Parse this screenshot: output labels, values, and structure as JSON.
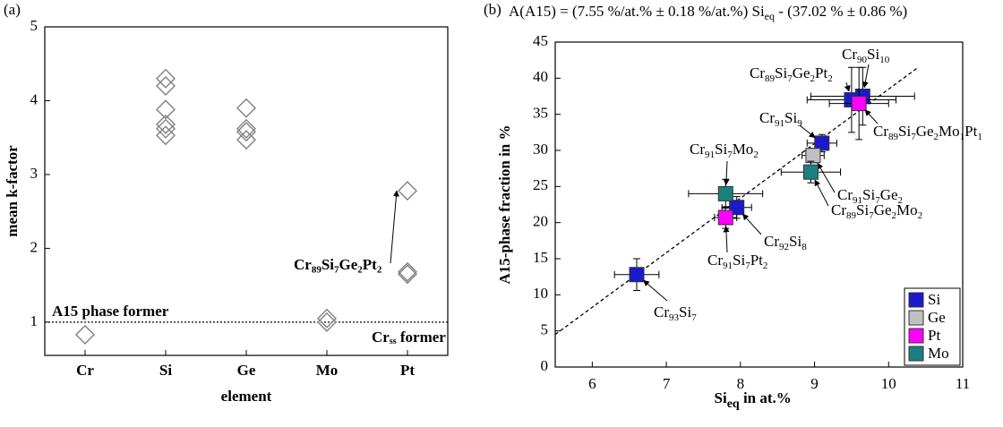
{
  "chart_data": [
    {
      "type": "scatter",
      "panel_label": "(a)",
      "x_label": "element",
      "y_label": "mean k-factor",
      "categories": [
        "Cr",
        "Si",
        "Ge",
        "Mo",
        "Pt"
      ],
      "values": [
        [
          0.83
        ],
        [
          4.3,
          4.2,
          3.88,
          3.68,
          3.62,
          3.53
        ],
        [
          3.9,
          3.62,
          3.58,
          3.47
        ],
        [
          1.05,
          1.0
        ],
        [
          2.78,
          1.68,
          1.65
        ]
      ],
      "marker_color": "#808080",
      "ylim": [
        0.55,
        5
      ],
      "yticks": [
        1,
        2,
        3,
        4,
        5
      ],
      "hline": 1,
      "annotations": [
        [
          "A15 phase former"
        ],
        [
          "Cr",
          "ss",
          " former"
        ],
        [
          "Cr",
          "89",
          "Si",
          "7",
          "Ge",
          "2",
          "Pt",
          "2"
        ]
      ]
    },
    {
      "type": "errorbar",
      "panel_label": "(b)",
      "title": [
        "A(A15) = (7.55 %/at.% ± 0.18 %/at.%) Si",
        "eq",
        " - (37.02 % ± 0.86 %)"
      ],
      "x_label": [
        "Si",
        "eq",
        " in at.%"
      ],
      "y_label": "A15-phase fraction in %",
      "xlim": [
        5.5,
        11
      ],
      "xticks": [
        6,
        7,
        8,
        9,
        10,
        11
      ],
      "ylim": [
        0,
        45
      ],
      "yticks": [
        0,
        5,
        10,
        15,
        20,
        25,
        30,
        35,
        40,
        45
      ],
      "fit": {
        "slope": 7.55,
        "intercept": -37.02
      },
      "legend": "lower right",
      "series": [
        {
          "name": "Si",
          "color": "#1a1acc",
          "x": [
            6.6,
            7.95,
            9.1,
            9.65,
            9.5
          ],
          "values": [
            12.8,
            22.1,
            31,
            37.5,
            37
          ],
          "xerr": [
            0.3,
            0.2,
            0.2,
            0.7,
            0.6
          ],
          "yerr": [
            2.2,
            1.5,
            1.2,
            4,
            4.5
          ],
          "labels": [
            [
              "Cr",
              "93",
              "Si",
              "7"
            ],
            [
              "Cr",
              "92",
              "Si",
              "8"
            ],
            [
              "Cr",
              "91",
              "Si",
              "9"
            ],
            [
              "Cr",
              "90",
              "Si",
              "10"
            ],
            [
              "Cr",
              "89",
              "Si",
              "7",
              "Ge",
              "2",
              "Pt",
              "2"
            ]
          ]
        },
        {
          "name": "Ge",
          "color": "#c0c0c0",
          "x": [
            8.98
          ],
          "values": [
            29.3
          ],
          "xerr": [
            0.15
          ],
          "yerr": [
            1
          ],
          "labels": [
            [
              "Cr",
              "91",
              "Si",
              "7",
              "Ge",
              "2"
            ]
          ]
        },
        {
          "name": "Pt",
          "color": "#ff00ff",
          "x": [
            7.8,
            9.6
          ],
          "values": [
            20.7,
            36.5
          ],
          "xerr": [
            0.15,
            0.4
          ],
          "yerr": [
            1.5,
            5
          ],
          "labels": [
            [
              "Cr",
              "91",
              "Si",
              "7",
              "Pt",
              "2"
            ],
            [
              "Cr",
              "89",
              "Si",
              "7",
              "Ge",
              "2",
              "Mo",
              "1",
              "Pt",
              "1"
            ]
          ]
        },
        {
          "name": "Mo",
          "color": "#1a8080",
          "x": [
            7.8,
            8.95
          ],
          "values": [
            24,
            27
          ],
          "xerr": [
            0.5,
            0.4
          ],
          "yerr": [
            2,
            1.5
          ],
          "labels": [
            [
              "Cr",
              "91",
              "Si",
              "7",
              "Mo",
              "2"
            ],
            [
              "Cr",
              "89",
              "Si",
              "7",
              "Ge",
              "2",
              "Mo",
              "2"
            ]
          ]
        }
      ]
    }
  ]
}
